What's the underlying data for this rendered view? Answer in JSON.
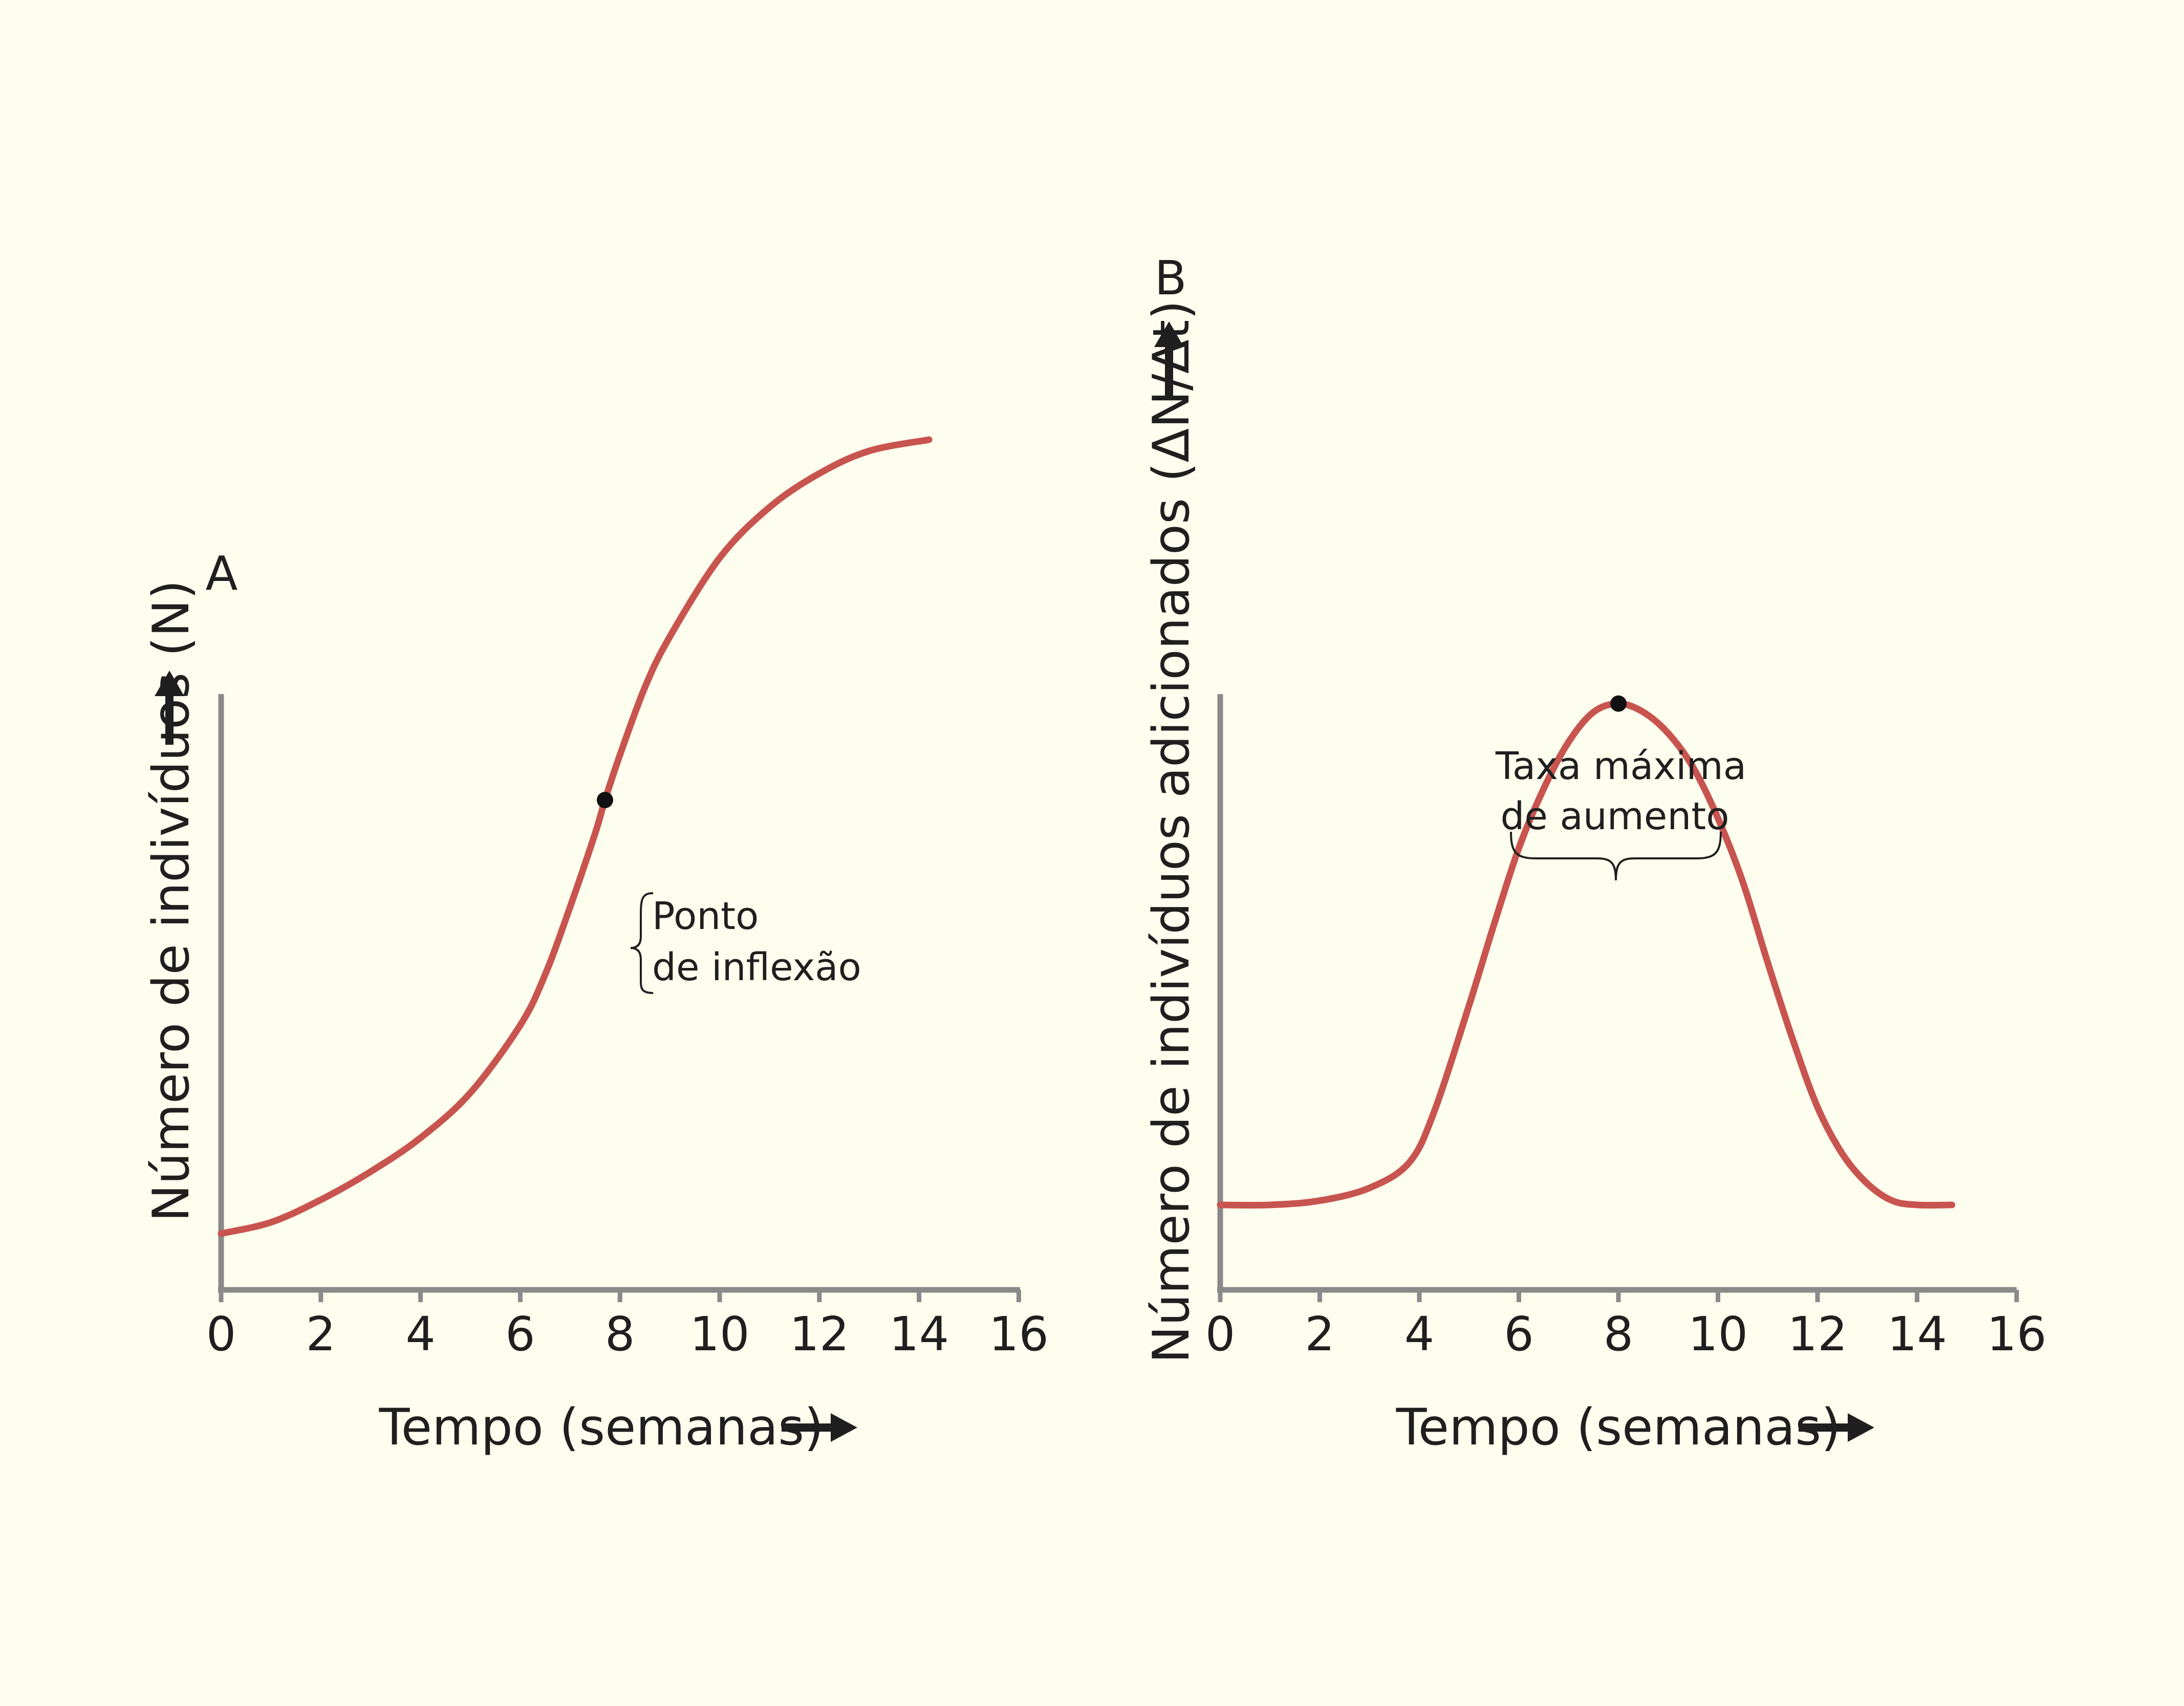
{
  "colors": {
    "background": "#fefeee",
    "axis": "#8a8a8a",
    "curve": "#c85450",
    "text": "#1f1f1f"
  },
  "chart_data": [
    {
      "panel": "A",
      "type": "line",
      "xlabel": "Tempo (semanas)",
      "ylabel": "Número de indivíduos (N)",
      "x_ticks": [
        "0",
        "2",
        "4",
        "6",
        "8",
        "10",
        "12",
        "14",
        "16"
      ],
      "xlim": [
        0,
        16
      ],
      "y_tick_labels": false,
      "grid": false,
      "series": [
        {
          "x": [
            0,
            1,
            2,
            3,
            4,
            5,
            6,
            6.5,
            7,
            7.5,
            7.7,
            8,
            8.5,
            9,
            10,
            11,
            12,
            13,
            14.2
          ],
          "y": [
            0.1,
            0.12,
            0.16,
            0.21,
            0.27,
            0.35,
            0.47,
            0.56,
            0.68,
            0.81,
            0.87,
            0.95,
            1.07,
            1.16,
            1.3,
            1.39,
            1.45,
            1.49,
            1.51
          ]
        }
      ],
      "annotations": [
        {
          "x": 7.7,
          "y": 0.87,
          "text_lines": [
            "Ponto",
            "de inflexão"
          ]
        }
      ]
    },
    {
      "panel": "B",
      "type": "line",
      "xlabel": "Tempo (semanas)",
      "ylabel": "Número de indivíduos adicionados (ΔN/Δt)",
      "x_ticks": [
        "0",
        "2",
        "4",
        "6",
        "8",
        "10",
        "12",
        "14",
        "16"
      ],
      "xlim": [
        0,
        16
      ],
      "y_tick_labels": false,
      "grid": false,
      "series": [
        {
          "x": [
            0,
            1,
            2,
            3,
            3.8,
            4.3,
            5,
            5.5,
            6,
            6.5,
            7,
            7.5,
            8,
            8.5,
            9,
            9.5,
            10,
            10.5,
            11,
            11.5,
            12,
            12.5,
            13,
            13.5,
            14,
            14.7
          ],
          "y": [
            0.2,
            0.2,
            0.21,
            0.24,
            0.3,
            0.42,
            0.67,
            0.86,
            1.04,
            1.18,
            1.29,
            1.36,
            1.38,
            1.36,
            1.31,
            1.23,
            1.11,
            0.96,
            0.77,
            0.59,
            0.43,
            0.32,
            0.25,
            0.21,
            0.2,
            0.2
          ]
        }
      ],
      "annotations": [
        {
          "x": 8,
          "y": 1.38,
          "text_lines": [
            "Taxa máxima",
            "de aumento"
          ]
        }
      ]
    }
  ]
}
